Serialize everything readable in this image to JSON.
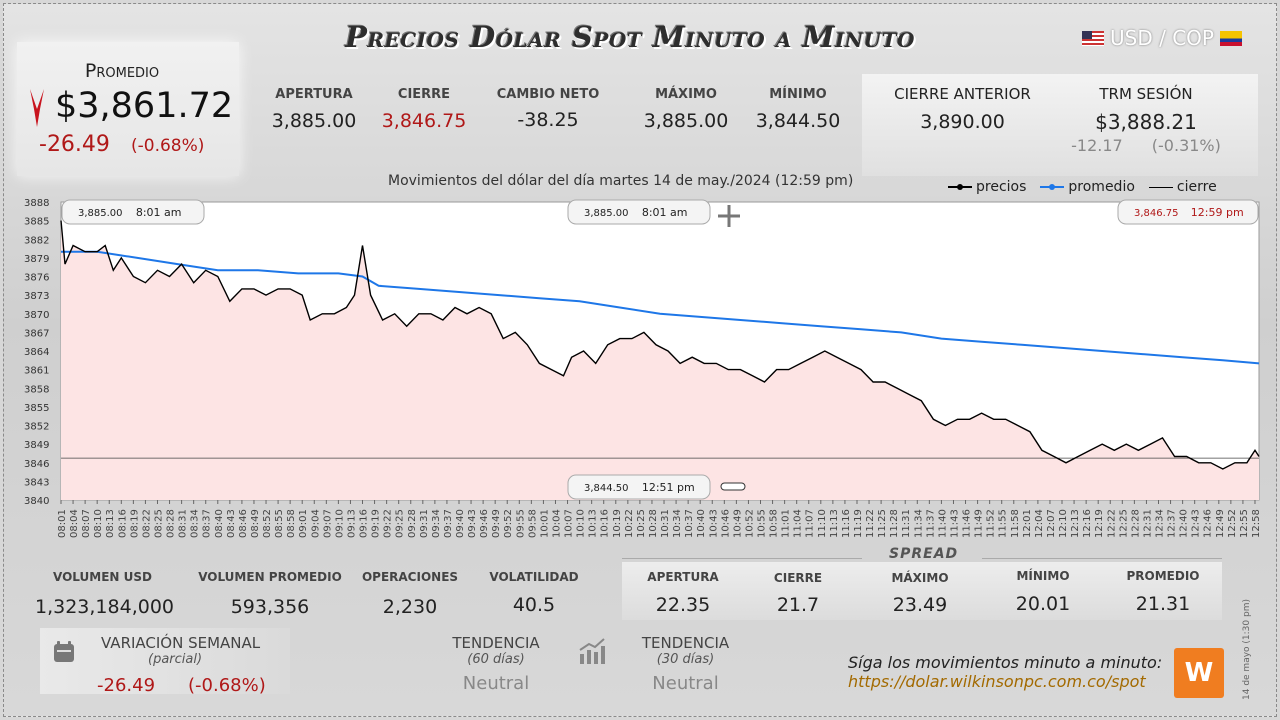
{
  "header": {
    "title": "Precios Dólar Spot Minuto a Minuto",
    "pair": "USD / COP"
  },
  "average": {
    "label": "Promedio",
    "value": "$3,861.72",
    "change": "-26.49",
    "change_pct": "(-0.68%)"
  },
  "stats": [
    {
      "label": "APERTURA",
      "value": "3,885.00"
    },
    {
      "label": "CIERRE",
      "value": "3,846.75"
    },
    {
      "label": "CAMBIO NETO",
      "value": "-38.25"
    },
    {
      "label": "MÁXIMO",
      "value": "3,885.00"
    },
    {
      "label": "MÍNIMO",
      "value": "3,844.50"
    }
  ],
  "previous_close": {
    "label": "CIERRE ANTERIOR",
    "value": "3,890.00"
  },
  "trm": {
    "label": "TRM SESIÓN",
    "value": "$3,888.21",
    "change": "-12.17",
    "change_pct": "(-0.31%)"
  },
  "chart_caption": "Movimientos del dólar del día martes 14 de may./2024 (12:59 pm)",
  "legend": {
    "prices": "precios",
    "average": "promedio",
    "close": "cierre"
  },
  "callouts": {
    "open": {
      "price": "3,885.00",
      "time": "8:01 am"
    },
    "max": {
      "price": "3,885.00",
      "time": "8:01 am"
    },
    "last": {
      "price": "3,846.75",
      "time": "12:59 pm"
    },
    "min": {
      "price": "3,844.50",
      "time": "12:51 pm"
    }
  },
  "colors": {
    "price_line": "#000000",
    "average_line": "#1e77e8",
    "area_fill": "#fde4e4",
    "negative": "#b01818"
  },
  "chart_data": {
    "type": "line",
    "title": "",
    "ylim": [
      3840,
      3888
    ],
    "yticks": [
      3888,
      3885,
      3882,
      3879,
      3876,
      3873,
      3870,
      3867,
      3864,
      3861,
      3858,
      3855,
      3852,
      3849,
      3846,
      3843,
      3840
    ],
    "x_tick_labels": [
      "08:01",
      "08:04",
      "08:07",
      "08:10",
      "08:13",
      "08:16",
      "08:19",
      "08:22",
      "08:25",
      "08:28",
      "08:31",
      "08:34",
      "08:37",
      "08:40",
      "08:43",
      "08:46",
      "08:49",
      "08:52",
      "08:55",
      "08:58",
      "09:01",
      "09:04",
      "09:07",
      "09:10",
      "09:13",
      "09:16",
      "09:19",
      "09:22",
      "09:25",
      "09:28",
      "09:31",
      "09:34",
      "09:37",
      "09:40",
      "09:43",
      "09:46",
      "09:49",
      "09:52",
      "09:55",
      "09:58",
      "10:01",
      "10:04",
      "10:07",
      "10:10",
      "10:13",
      "10:16",
      "10:19",
      "10:22",
      "10:25",
      "10:28",
      "10:31",
      "10:34",
      "10:37",
      "10:40",
      "10:43",
      "10:46",
      "10:49",
      "10:52",
      "10:55",
      "10:58",
      "11:01",
      "11:04",
      "11:07",
      "11:10",
      "11:13",
      "11:16",
      "11:19",
      "11:22",
      "11:25",
      "11:28",
      "11:31",
      "11:34",
      "11:37",
      "11:40",
      "11:43",
      "11:46",
      "11:49",
      "11:52",
      "11:55",
      "11:58",
      "12:01",
      "12:04",
      "12:07",
      "12:10",
      "12:13",
      "12:16",
      "12:19",
      "12:22",
      "12:25",
      "12:28",
      "12:31",
      "12:34",
      "12:37",
      "12:40",
      "12:43",
      "12:46",
      "12:49",
      "12:52",
      "12:55",
      "12:58"
    ],
    "x_start_minute": 481,
    "x_end_minute": 779,
    "close_level": 3846.75,
    "series": [
      {
        "name": "precios",
        "points": [
          [
            481,
            3885
          ],
          [
            482,
            3878
          ],
          [
            484,
            3881
          ],
          [
            487,
            3880
          ],
          [
            490,
            3880
          ],
          [
            492,
            3881
          ],
          [
            494,
            3877
          ],
          [
            496,
            3879
          ],
          [
            499,
            3876
          ],
          [
            502,
            3875
          ],
          [
            505,
            3877
          ],
          [
            508,
            3876
          ],
          [
            511,
            3878
          ],
          [
            514,
            3875
          ],
          [
            517,
            3877
          ],
          [
            520,
            3876
          ],
          [
            523,
            3872
          ],
          [
            526,
            3874
          ],
          [
            529,
            3874
          ],
          [
            532,
            3873
          ],
          [
            535,
            3874
          ],
          [
            538,
            3874
          ],
          [
            541,
            3873
          ],
          [
            543,
            3869
          ],
          [
            546,
            3870
          ],
          [
            549,
            3870
          ],
          [
            552,
            3871
          ],
          [
            554,
            3873
          ],
          [
            556,
            3881
          ],
          [
            558,
            3873
          ],
          [
            561,
            3869
          ],
          [
            564,
            3870
          ],
          [
            567,
            3868
          ],
          [
            570,
            3870
          ],
          [
            573,
            3870
          ],
          [
            576,
            3869
          ],
          [
            579,
            3871
          ],
          [
            582,
            3870
          ],
          [
            585,
            3871
          ],
          [
            588,
            3870
          ],
          [
            591,
            3866
          ],
          [
            594,
            3867
          ],
          [
            597,
            3865
          ],
          [
            600,
            3862
          ],
          [
            603,
            3861
          ],
          [
            606,
            3860
          ],
          [
            608,
            3863
          ],
          [
            611,
            3864
          ],
          [
            614,
            3862
          ],
          [
            617,
            3865
          ],
          [
            620,
            3866
          ],
          [
            623,
            3866
          ],
          [
            626,
            3867
          ],
          [
            629,
            3865
          ],
          [
            632,
            3864
          ],
          [
            635,
            3862
          ],
          [
            638,
            3863
          ],
          [
            641,
            3862
          ],
          [
            644,
            3862
          ],
          [
            647,
            3861
          ],
          [
            650,
            3861
          ],
          [
            653,
            3860
          ],
          [
            656,
            3859
          ],
          [
            659,
            3861
          ],
          [
            662,
            3861
          ],
          [
            665,
            3862
          ],
          [
            668,
            3863
          ],
          [
            671,
            3864
          ],
          [
            674,
            3863
          ],
          [
            677,
            3862
          ],
          [
            680,
            3861
          ],
          [
            683,
            3859
          ],
          [
            686,
            3859
          ],
          [
            689,
            3858
          ],
          [
            692,
            3857
          ],
          [
            695,
            3856
          ],
          [
            698,
            3853
          ],
          [
            701,
            3852
          ],
          [
            704,
            3853
          ],
          [
            707,
            3853
          ],
          [
            710,
            3854
          ],
          [
            713,
            3853
          ],
          [
            716,
            3853
          ],
          [
            719,
            3852
          ],
          [
            722,
            3851
          ],
          [
            725,
            3848
          ],
          [
            728,
            3847
          ],
          [
            731,
            3846
          ],
          [
            734,
            3847
          ],
          [
            737,
            3848
          ],
          [
            740,
            3849
          ],
          [
            743,
            3848
          ],
          [
            746,
            3849
          ],
          [
            749,
            3848
          ],
          [
            752,
            3849
          ],
          [
            755,
            3850
          ],
          [
            758,
            3847
          ],
          [
            761,
            3847
          ],
          [
            764,
            3846
          ],
          [
            767,
            3846
          ],
          [
            770,
            3845
          ],
          [
            773,
            3846
          ],
          [
            776,
            3846
          ],
          [
            778,
            3848
          ],
          [
            779,
            3847
          ]
        ]
      },
      {
        "name": "promedio",
        "points": [
          [
            481,
            3880
          ],
          [
            490,
            3880
          ],
          [
            500,
            3879
          ],
          [
            510,
            3878
          ],
          [
            520,
            3877
          ],
          [
            530,
            3877
          ],
          [
            540,
            3876.5
          ],
          [
            550,
            3876.5
          ],
          [
            556,
            3876
          ],
          [
            560,
            3874.5
          ],
          [
            570,
            3874
          ],
          [
            580,
            3873.5
          ],
          [
            590,
            3873
          ],
          [
            600,
            3872.5
          ],
          [
            610,
            3872
          ],
          [
            620,
            3871
          ],
          [
            630,
            3870
          ],
          [
            640,
            3869.5
          ],
          [
            650,
            3869
          ],
          [
            660,
            3868.5
          ],
          [
            670,
            3868
          ],
          [
            680,
            3867.5
          ],
          [
            690,
            3867
          ],
          [
            700,
            3866
          ],
          [
            710,
            3865.5
          ],
          [
            720,
            3865
          ],
          [
            730,
            3864.5
          ],
          [
            740,
            3864
          ],
          [
            750,
            3863.5
          ],
          [
            760,
            3863
          ],
          [
            770,
            3862.5
          ],
          [
            779,
            3862
          ]
        ]
      }
    ]
  },
  "bottom_stats": [
    {
      "label": "VOLUMEN USD",
      "value": "1,323,184,000"
    },
    {
      "label": "VOLUMEN PROMEDIO",
      "value": "593,356"
    },
    {
      "label": "OPERACIONES",
      "value": "2,230"
    },
    {
      "label": "VOLATILIDAD",
      "value": "40.5"
    }
  ],
  "spread": {
    "heading": "SPREAD",
    "items": [
      {
        "label": "APERTURA",
        "value": "22.35"
      },
      {
        "label": "CIERRE",
        "value": "21.7"
      },
      {
        "label": "MÁXIMO",
        "value": "23.49"
      },
      {
        "label": "MÍNIMO",
        "value": "20.01"
      },
      {
        "label": "PROMEDIO",
        "value": "21.31"
      }
    ]
  },
  "weekly": {
    "label": "VARIACIÓN SEMANAL",
    "sub": "(parcial)",
    "change": "-26.49",
    "change_pct": "(-0.68%)"
  },
  "trend60": {
    "label": "TENDENCIA",
    "sub": "(60 días)",
    "value": "Neutral"
  },
  "trend30": {
    "label": "TENDENCIA",
    "sub": "(30 días)",
    "value": "Neutral"
  },
  "footer": {
    "follow": "Síga los movimientos minuto a minuto:",
    "url": "https://dolar.wilkinsonpc.com.co/spot",
    "stamp": "14 de mayo (1:30 pm)",
    "logo": "W"
  }
}
